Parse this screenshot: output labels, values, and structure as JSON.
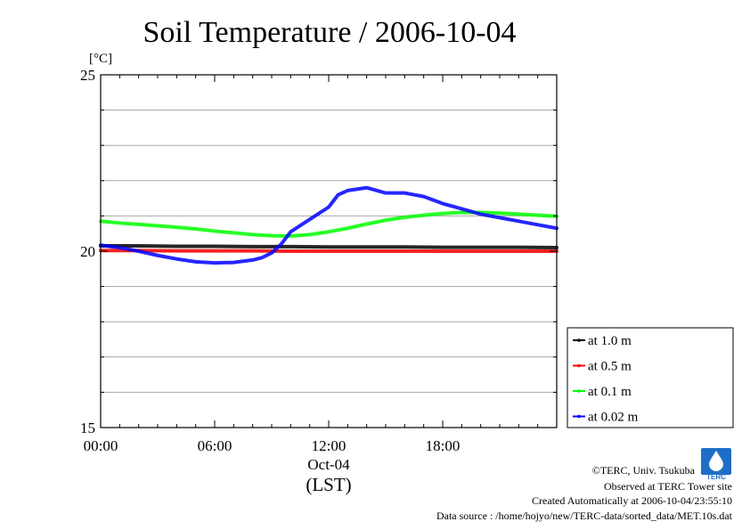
{
  "chart_data": {
    "type": "line",
    "title": "Soil Temperature / 2006-10-04",
    "ylabel": "[°C]",
    "xlabel": "(LST)",
    "date_label": "Oct-04",
    "ylim": [
      15,
      25
    ],
    "xlim": [
      0,
      24
    ],
    "yticks": [
      "15",
      "20",
      "25"
    ],
    "xticks": [
      {
        "x": 0,
        "label": "00:00"
      },
      {
        "x": 6,
        "label": "06:00"
      },
      {
        "x": 12,
        "label": "12:00"
      },
      {
        "x": 18,
        "label": "18:00"
      }
    ],
    "grid": true,
    "legend_position": "right-bottom",
    "series": [
      {
        "name": "at 1.0 m",
        "color": "#000000",
        "x": [
          0,
          2,
          4,
          6,
          8,
          10,
          12,
          14,
          16,
          18,
          20,
          22,
          24
        ],
        "y": [
          20.15,
          20.15,
          20.14,
          20.14,
          20.13,
          20.13,
          20.12,
          20.12,
          20.12,
          20.11,
          20.11,
          20.11,
          20.1
        ]
      },
      {
        "name": "at 0.5 m",
        "color": "#ff0000",
        "x": [
          0,
          2,
          4,
          6,
          8,
          10,
          12,
          14,
          16,
          18,
          20,
          22,
          24
        ],
        "y": [
          20.02,
          20.02,
          20.01,
          20.01,
          20.01,
          20.0,
          20.0,
          20.0,
          20.0,
          20.0,
          20.0,
          20.0,
          20.0
        ]
      },
      {
        "name": "at 0.1 m",
        "color": "#00ff00",
        "x": [
          0,
          1,
          2,
          3,
          4,
          5,
          6,
          7,
          8,
          9,
          10,
          11,
          12,
          13,
          14,
          15,
          16,
          17,
          18,
          19,
          20,
          21,
          22,
          23,
          24
        ],
        "y": [
          20.85,
          20.8,
          20.76,
          20.72,
          20.68,
          20.63,
          20.57,
          20.52,
          20.47,
          20.44,
          20.43,
          20.47,
          20.55,
          20.65,
          20.77,
          20.88,
          20.96,
          21.02,
          21.07,
          21.1,
          21.1,
          21.08,
          21.05,
          21.02,
          20.99
        ]
      },
      {
        "name": "at 0.02 m",
        "color": "#0000ff",
        "x": [
          0,
          1,
          2,
          3,
          4,
          5,
          6,
          7,
          8,
          8.5,
          9,
          9.5,
          10,
          11,
          12,
          12.5,
          13,
          14,
          15,
          16,
          17,
          18,
          19,
          20,
          21,
          22,
          23,
          24
        ],
        "y": [
          20.17,
          20.1,
          20.0,
          19.88,
          19.78,
          19.7,
          19.67,
          19.68,
          19.75,
          19.82,
          19.95,
          20.2,
          20.55,
          20.9,
          21.25,
          21.6,
          21.72,
          21.8,
          21.65,
          21.65,
          21.55,
          21.35,
          21.2,
          21.05,
          20.95,
          20.85,
          20.75,
          20.65
        ]
      }
    ]
  },
  "credits": {
    "copyright": "©TERC, Univ. Tsukuba",
    "site": "Observed at TERC Tower site",
    "created": "Created Automatically at 2006-10-04/23:55:10",
    "source": "Data source : /home/hojyo/new/TERC-data/sorted_data/MET.10s.dat",
    "logo_text": "TERC"
  }
}
